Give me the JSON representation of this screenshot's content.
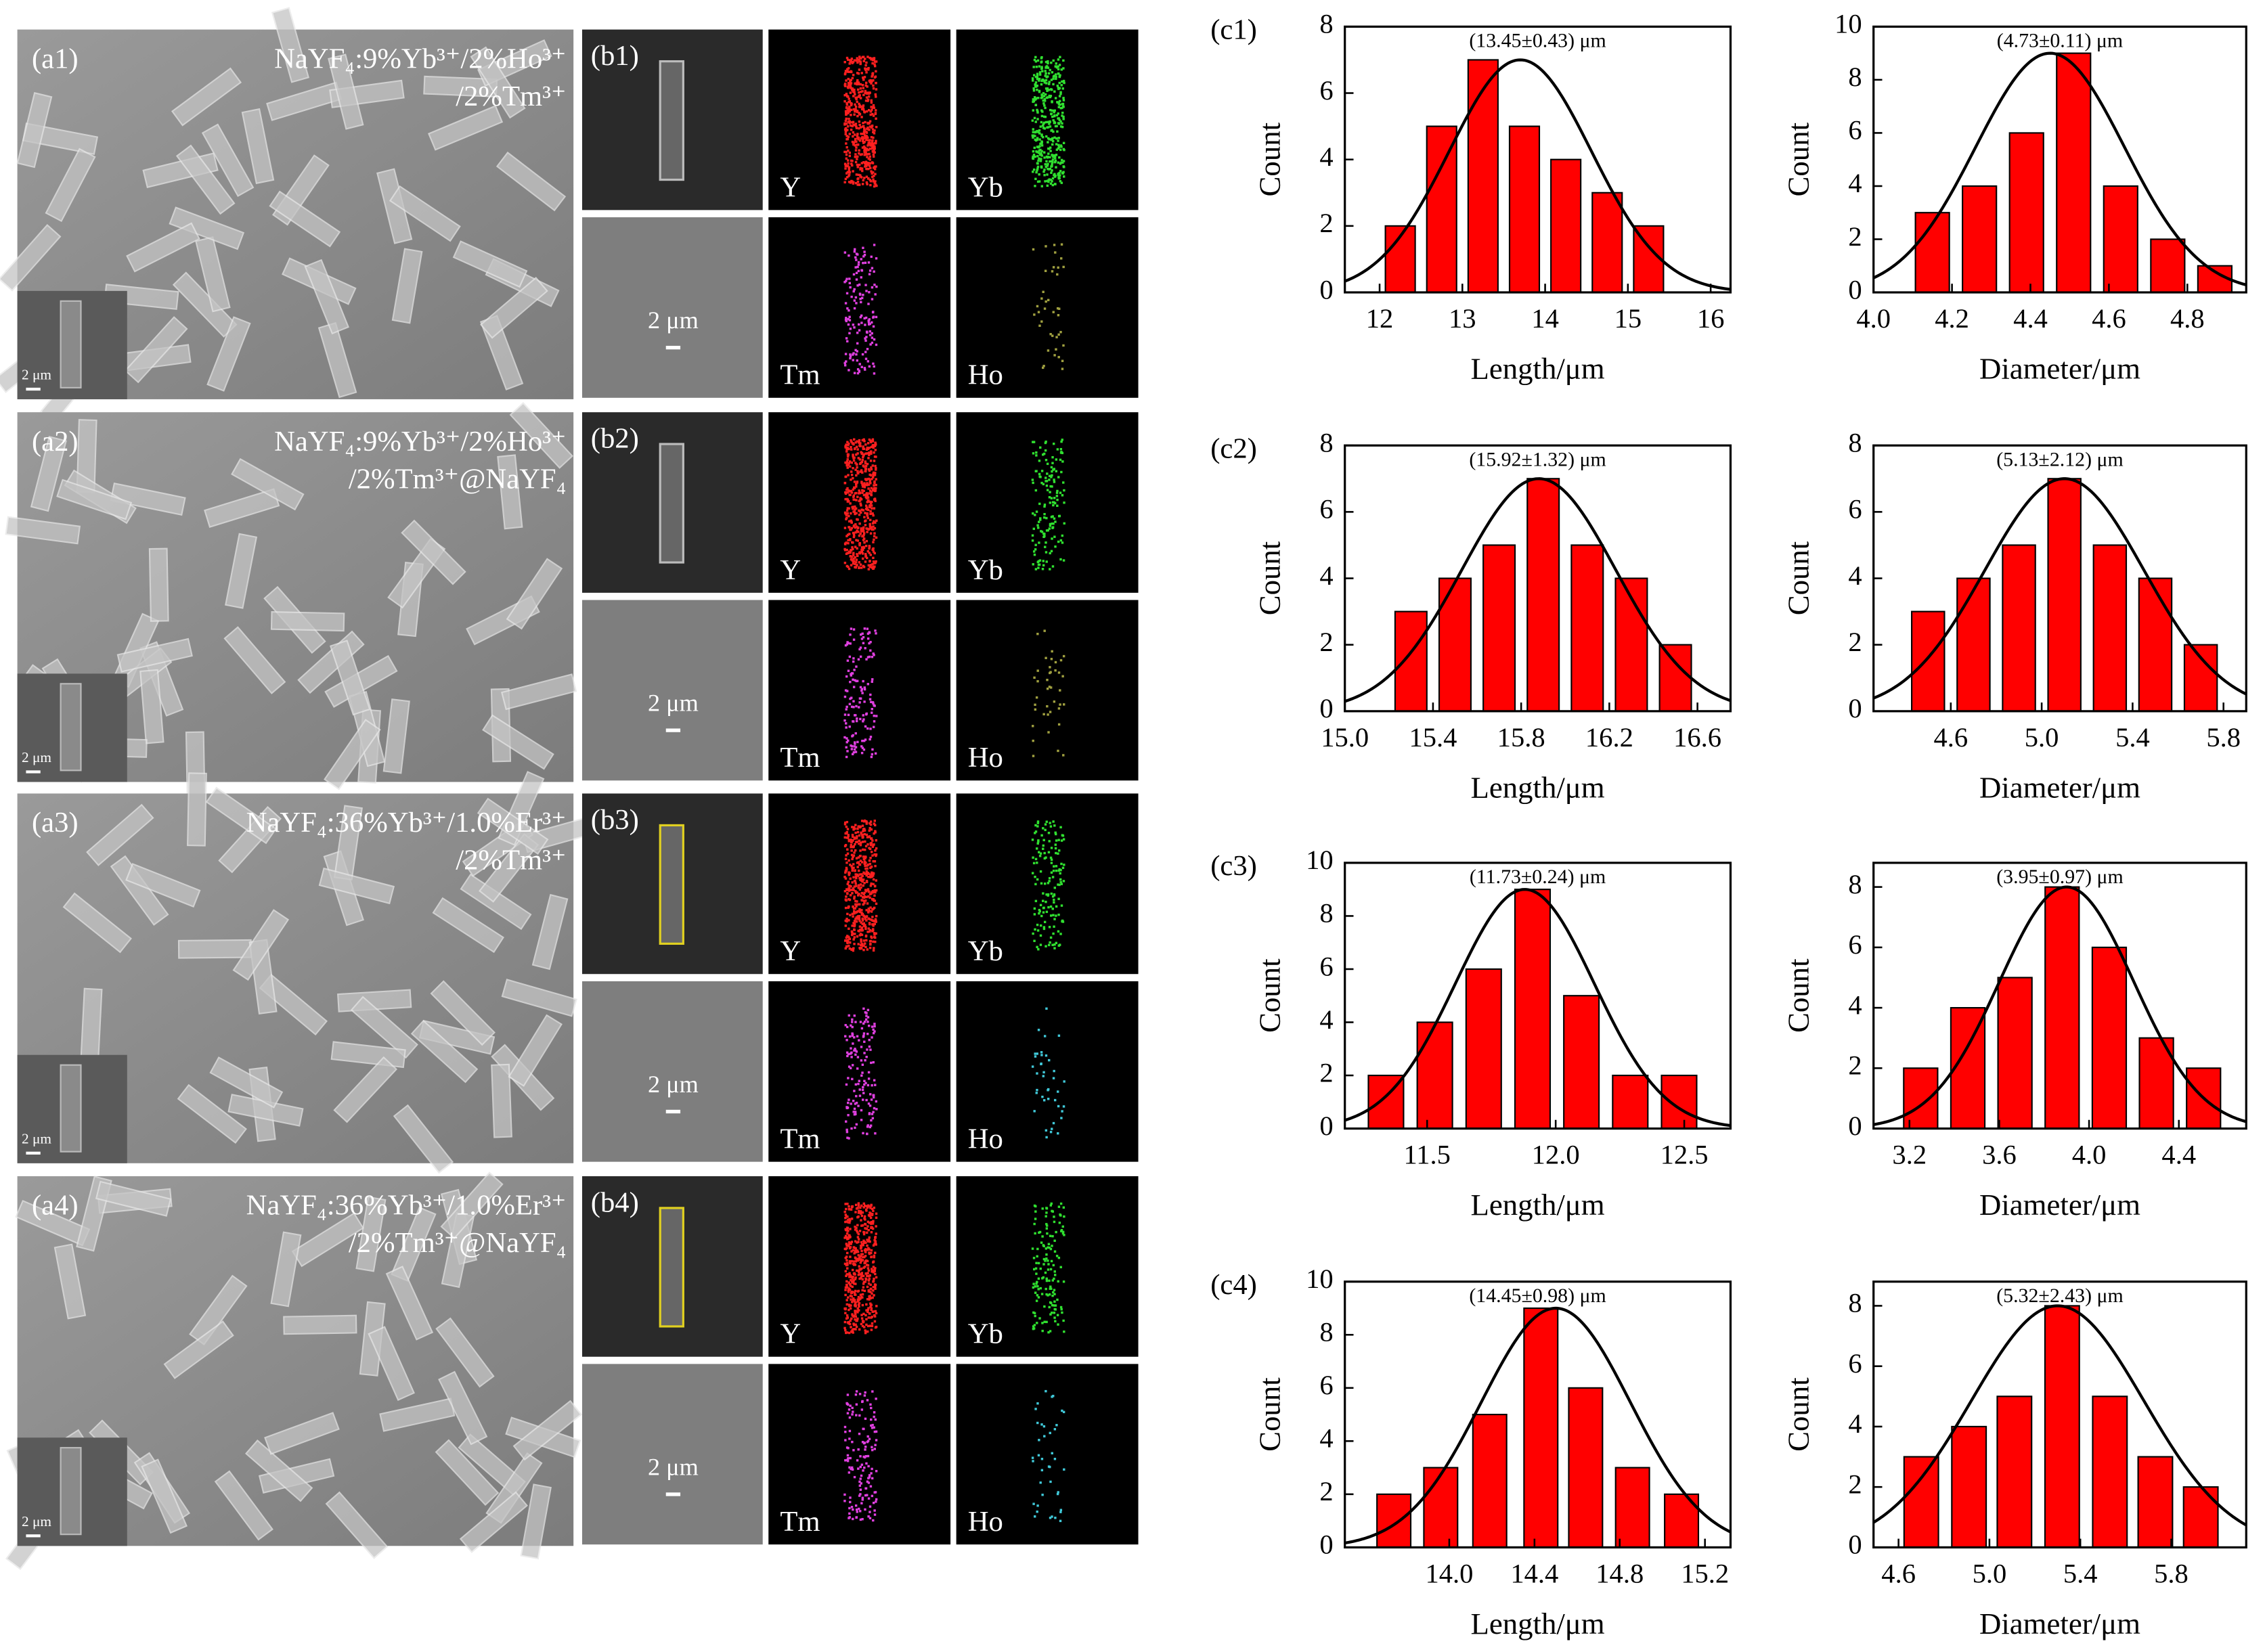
{
  "sem_panels": [
    {
      "label": "(a1)",
      "lines": [
        "NaYF₄:9%Yb³⁺/2%Ho³⁺",
        "/2%Tm³⁺"
      ],
      "scale": "2 μm"
    },
    {
      "label": "(a2)",
      "lines": [
        "NaYF₄:9%Yb³⁺/2%Ho³⁺",
        "/2%Tm³⁺@NaYF₄"
      ],
      "scale": "2 μm"
    },
    {
      "label": "(a3)",
      "lines": [
        "NaYF₄:36%Yb³⁺/1.0%Er³⁺",
        "/2%Tm³⁺"
      ],
      "scale": "2 μm"
    },
    {
      "label": "(a4)",
      "lines": [
        "NaYF₄:36%Yb³⁺/1.0%Er³⁺",
        "/2%Tm³⁺@NaYF₄"
      ],
      "scale": "2 μm"
    }
  ],
  "map_panels": [
    {
      "label": "(b1)",
      "scale": "2 μm",
      "elements": [
        "Y",
        "Yb",
        "Tm",
        "Ho"
      ],
      "colors": [
        "#ff2020",
        "#30e030",
        "#e040e0",
        "#a0a040"
      ]
    },
    {
      "label": "(b2)",
      "scale": "2 μm",
      "elements": [
        "Y",
        "Yb",
        "Tm",
        "Ho"
      ],
      "colors": [
        "#ff2020",
        "#30e030",
        "#e040e0",
        "#a0a040"
      ]
    },
    {
      "label": "(b3)",
      "scale": "2 μm",
      "elements": [
        "Y",
        "Yb",
        "Tm",
        "Ho"
      ],
      "colors": [
        "#ff2020",
        "#30e030",
        "#e040e0",
        "#40c8d8"
      ]
    },
    {
      "label": "(b4)",
      "scale": "2 μm",
      "elements": [
        "Y",
        "Yb",
        "Tm",
        "Ho"
      ],
      "colors": [
        "#ff2020",
        "#30e030",
        "#e040e0",
        "#40c8d8"
      ]
    }
  ],
  "chart_data": [
    {
      "type": "bar",
      "panel_label": "(c1)",
      "annotation": "(13.45±0.43) μm",
      "xlabel": "Length/μm",
      "ylabel": "Count",
      "color": "#ff0000",
      "x": [
        12.25,
        12.75,
        13.25,
        13.75,
        14.25,
        14.75,
        15.25
      ],
      "values": [
        2,
        5,
        7,
        5,
        4,
        3,
        2
      ],
      "xlim": [
        11.58,
        16.24
      ],
      "xticks": [
        12,
        13,
        14,
        15,
        16
      ],
      "ylim": [
        0,
        8
      ],
      "yticks": [
        0,
        2,
        4,
        6,
        8
      ],
      "fit": {
        "mean": 13.7,
        "sigma": 0.86,
        "peak": 7
      }
    },
    {
      "type": "bar",
      "annotation": "(4.73±0.11) μm",
      "xlabel": "Diameter/μm",
      "ylabel": "Count",
      "color": "#ff0000",
      "x": [
        4.15,
        4.27,
        4.39,
        4.51,
        4.63,
        4.75,
        4.87
      ],
      "values": [
        3,
        4,
        6,
        9,
        4,
        2,
        1
      ],
      "xlim": [
        4.0,
        4.95
      ],
      "xticks": [
        {
          "value": 4,
          "label": "4.0"
        },
        4.2,
        4.4,
        4.6,
        4.8
      ],
      "ylim": [
        0,
        10
      ],
      "yticks": [
        0,
        2,
        4,
        6,
        8,
        10
      ],
      "fit": {
        "mean": 4.45,
        "sigma": 0.19,
        "peak": 9
      }
    },
    {
      "type": "bar",
      "panel_label": "(c2)",
      "annotation": "(15.92±1.32) μm",
      "xlabel": "Length/μm",
      "ylabel": "Count",
      "color": "#ff0000",
      "x": [
        15.3,
        15.5,
        15.7,
        15.9,
        16.1,
        16.3,
        16.5
      ],
      "values": [
        3,
        4,
        5,
        7,
        5,
        4,
        2
      ],
      "xlim": [
        15.0,
        16.75
      ],
      "xticks": [
        {
          "value": 15,
          "label": "15.0"
        },
        15.4,
        15.8,
        16.2,
        16.6
      ],
      "ylim": [
        0,
        8
      ],
      "yticks": [
        0,
        2,
        4,
        6,
        8
      ],
      "fit": {
        "mean": 15.88,
        "sigma": 0.35,
        "peak": 7
      }
    },
    {
      "type": "bar",
      "annotation": "(5.13±2.12) μm",
      "xlabel": "Diameter/μm",
      "ylabel": "Count",
      "color": "#ff0000",
      "x": [
        4.5,
        4.7,
        4.9,
        5.1,
        5.3,
        5.5,
        5.7
      ],
      "values": [
        3,
        4,
        5,
        7,
        5,
        4,
        2
      ],
      "xlim": [
        4.26,
        5.9
      ],
      "xticks": [
        4.6,
        {
          "value": 5,
          "label": "5.0"
        },
        5.4,
        5.8
      ],
      "ylim": [
        0,
        8
      ],
      "yticks": [
        0,
        2,
        4,
        6,
        8
      ],
      "fit": {
        "mean": 5.1,
        "sigma": 0.35,
        "peak": 7
      }
    },
    {
      "type": "bar",
      "panel_label": "(c3)",
      "annotation": "(11.73±0.24) μm",
      "xlabel": "Length/μm",
      "ylabel": "Count",
      "color": "#ff0000",
      "x": [
        11.34,
        11.53,
        11.72,
        11.91,
        12.1,
        12.29,
        12.48
      ],
      "values": [
        2,
        4,
        6,
        9,
        5,
        2,
        2
      ],
      "xlim": [
        11.18,
        12.68
      ],
      "xticks": [
        11.5,
        {
          "value": 12,
          "label": "12.0"
        },
        12.5
      ],
      "ylim": [
        0,
        10
      ],
      "yticks": [
        0,
        2,
        4,
        6,
        8,
        10
      ],
      "fit": {
        "mean": 11.88,
        "sigma": 0.27,
        "peak": 9
      }
    },
    {
      "type": "bar",
      "annotation": "(3.95±0.97) μm",
      "xlabel": "Diameter/μm",
      "ylabel": "Count",
      "color": "#ff0000",
      "x": [
        3.25,
        3.46,
        3.67,
        3.88,
        4.09,
        4.3,
        4.51
      ],
      "values": [
        2,
        4,
        5,
        8,
        6,
        3,
        2
      ],
      "xlim": [
        3.04,
        4.7
      ],
      "xticks": [
        3.2,
        3.6,
        {
          "value": 4,
          "label": "4.0"
        },
        4.4
      ],
      "ylim": [
        0,
        8.8
      ],
      "yticks": [
        0,
        2,
        4,
        6,
        8
      ],
      "fit": {
        "mean": 3.9,
        "sigma": 0.3,
        "peak": 8
      }
    },
    {
      "type": "bar",
      "panel_label": "(c4)",
      "annotation": "(14.45±0.98) μm",
      "xlabel": "Length/μm",
      "ylabel": "Count",
      "color": "#ff0000",
      "x": [
        13.74,
        13.96,
        14.19,
        14.43,
        14.64,
        14.86,
        15.09
      ],
      "values": [
        2,
        3,
        5,
        9,
        6,
        3,
        2
      ],
      "xlim": [
        13.51,
        15.32
      ],
      "xticks": [
        {
          "value": 14,
          "label": "14.0"
        },
        14.4,
        14.8,
        15.2
      ],
      "ylim": [
        0,
        10
      ],
      "yticks": [
        0,
        2,
        4,
        6,
        8,
        10
      ],
      "fit": {
        "mean": 14.5,
        "sigma": 0.35,
        "peak": 9
      }
    },
    {
      "type": "bar",
      "annotation": "(5.32±2.43) μm",
      "xlabel": "Diameter/μm",
      "ylabel": "Count",
      "color": "#ff0000",
      "x": [
        4.7,
        4.91,
        5.11,
        5.32,
        5.53,
        5.73,
        5.93
      ],
      "values": [
        3,
        4,
        5,
        8,
        5,
        3,
        2
      ],
      "xlim": [
        4.49,
        6.13
      ],
      "xticks": [
        4.6,
        {
          "value": 5,
          "label": "5.0"
        },
        5.4,
        5.8
      ],
      "ylim": [
        0,
        8.8
      ],
      "yticks": [
        0,
        2,
        4,
        6,
        8
      ],
      "fit": {
        "mean": 5.3,
        "sigma": 0.38,
        "peak": 8
      }
    }
  ]
}
